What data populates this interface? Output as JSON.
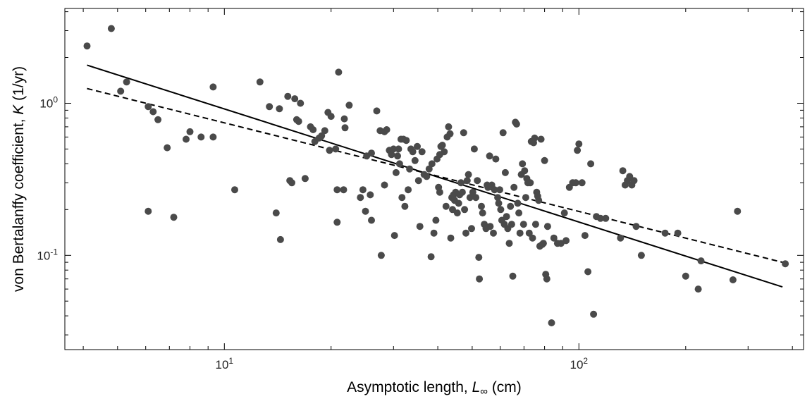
{
  "chart_data": {
    "type": "scatter",
    "title": "",
    "xlabel": {
      "prefix": "Asymptotic length, ",
      "symbol": "L",
      "subscript": "∞",
      "suffix": " (cm)"
    },
    "ylabel": {
      "prefix": "von Bertalanffy coefficient, ",
      "symbol": "K",
      "suffix": " (1/yr)"
    },
    "x_scale": "log",
    "y_scale": "log",
    "xlim": [
      3.55,
      430
    ],
    "ylim": [
      0.024,
      4.2
    ],
    "x_ticks": [
      {
        "value": 10,
        "base": "10",
        "exp": "1"
      },
      {
        "value": 100,
        "base": "10",
        "exp": "2"
      }
    ],
    "y_ticks": [
      {
        "value": 0.1,
        "base": "10",
        "exp": "-1"
      },
      {
        "value": 1,
        "base": "10",
        "exp": "0"
      }
    ],
    "grid": false,
    "marker_color": "#4a4a4a",
    "line_color": "#000000",
    "points": [
      [
        4.1,
        2.38
      ],
      [
        4.8,
        3.1
      ],
      [
        5.1,
        1.2
      ],
      [
        5.3,
        1.38
      ],
      [
        6.1,
        0.95
      ],
      [
        6.3,
        0.88
      ],
      [
        6.5,
        0.78
      ],
      [
        6.1,
        0.195
      ],
      [
        6.9,
        0.51
      ],
      [
        7.2,
        0.178
      ],
      [
        7.8,
        0.58
      ],
      [
        8.0,
        0.65
      ],
      [
        8.6,
        0.6
      ],
      [
        9.3,
        1.28
      ],
      [
        9.3,
        0.6
      ],
      [
        10.7,
        0.27
      ],
      [
        12.6,
        1.38
      ],
      [
        13.4,
        0.95
      ],
      [
        14.0,
        0.19
      ],
      [
        14.3,
        0.92
      ],
      [
        14.4,
        0.127
      ],
      [
        15.1,
        1.11
      ],
      [
        15.3,
        0.31
      ],
      [
        15.5,
        0.3
      ],
      [
        15.8,
        1.07
      ],
      [
        16.0,
        0.78
      ],
      [
        16.2,
        0.76
      ],
      [
        16.4,
        1.0
      ],
      [
        16.9,
        0.32
      ],
      [
        17.5,
        0.7
      ],
      [
        17.8,
        0.67
      ],
      [
        18.0,
        0.56
      ],
      [
        18.5,
        0.59
      ],
      [
        18.8,
        0.61
      ],
      [
        19.2,
        0.66
      ],
      [
        19.6,
        0.87
      ],
      [
        19.8,
        0.49
      ],
      [
        20.0,
        0.82
      ],
      [
        20.6,
        0.5
      ],
      [
        20.8,
        0.165
      ],
      [
        20.8,
        0.27
      ],
      [
        21.0,
        1.6
      ],
      [
        21.7,
        0.27
      ],
      [
        21.8,
        0.79
      ],
      [
        21.9,
        0.69
      ],
      [
        22.5,
        0.97
      ],
      [
        24.2,
        0.24
      ],
      [
        24.6,
        0.27
      ],
      [
        25.0,
        0.195
      ],
      [
        25.2,
        0.45
      ],
      [
        25.8,
        0.25
      ],
      [
        26.0,
        0.17
      ],
      [
        26.0,
        0.47
      ],
      [
        26.9,
        0.89
      ],
      [
        27.5,
        0.66
      ],
      [
        27.7,
        0.1
      ],
      [
        28.3,
        0.65
      ],
      [
        28.3,
        0.29
      ],
      [
        28.7,
        0.67
      ],
      [
        29.2,
        0.49
      ],
      [
        29.6,
        0.46
      ],
      [
        30.0,
        0.5
      ],
      [
        30.2,
        0.135
      ],
      [
        30.5,
        0.35
      ],
      [
        30.8,
        0.45
      ],
      [
        31.0,
        0.5
      ],
      [
        31.2,
        0.4
      ],
      [
        31.5,
        0.58
      ],
      [
        31.7,
        0.24
      ],
      [
        32.0,
        0.58
      ],
      [
        32.3,
        0.21
      ],
      [
        32.6,
        0.57
      ],
      [
        33.0,
        0.27
      ],
      [
        33.3,
        0.37
      ],
      [
        33.6,
        0.5
      ],
      [
        34.0,
        0.48
      ],
      [
        34.5,
        0.42
      ],
      [
        35.0,
        0.52
      ],
      [
        35.3,
        0.31
      ],
      [
        35.6,
        0.155
      ],
      [
        36.1,
        0.48
      ],
      [
        36.6,
        0.34
      ],
      [
        37.2,
        0.33
      ],
      [
        37.8,
        0.37
      ],
      [
        38.3,
        0.098
      ],
      [
        38.5,
        0.4
      ],
      [
        39.0,
        0.14
      ],
      [
        39.5,
        0.17
      ],
      [
        39.8,
        0.43
      ],
      [
        40.2,
        0.28
      ],
      [
        40.5,
        0.26
      ],
      [
        40.5,
        0.46
      ],
      [
        40.8,
        0.52
      ],
      [
        41.2,
        0.53
      ],
      [
        41.7,
        0.48
      ],
      [
        42.2,
        0.21
      ],
      [
        42.5,
        0.6
      ],
      [
        42.9,
        0.7
      ],
      [
        43.3,
        0.63
      ],
      [
        43.5,
        0.13
      ],
      [
        43.8,
        0.24
      ],
      [
        44.0,
        0.2
      ],
      [
        44.3,
        0.25
      ],
      [
        44.6,
        0.23
      ],
      [
        44.9,
        0.26
      ],
      [
        45.4,
        0.19
      ],
      [
        45.8,
        0.22
      ],
      [
        46.1,
        0.25
      ],
      [
        46.5,
        0.3
      ],
      [
        46.9,
        0.26
      ],
      [
        47.3,
        0.64
      ],
      [
        47.6,
        0.2
      ],
      [
        48.0,
        0.14
      ],
      [
        48.4,
        0.31
      ],
      [
        48.8,
        0.34
      ],
      [
        49.3,
        0.24
      ],
      [
        49.8,
        0.15
      ],
      [
        50.2,
        0.26
      ],
      [
        50.7,
        0.5
      ],
      [
        51.2,
        0.24
      ],
      [
        51.7,
        0.31
      ],
      [
        52.2,
        0.097
      ],
      [
        52.4,
        0.07
      ],
      [
        53.1,
        0.21
      ],
      [
        53.5,
        0.19
      ],
      [
        54.1,
        0.16
      ],
      [
        54.7,
        0.15
      ],
      [
        55.1,
        0.29
      ],
      [
        55.4,
        0.28
      ],
      [
        56.0,
        0.45
      ],
      [
        56.2,
        0.155
      ],
      [
        56.8,
        0.29
      ],
      [
        57.4,
        0.14
      ],
      [
        57.8,
        0.27
      ],
      [
        58.3,
        0.43
      ],
      [
        59.0,
        0.24
      ],
      [
        59.4,
        0.22
      ],
      [
        59.8,
        0.27
      ],
      [
        60.2,
        0.2
      ],
      [
        60.6,
        0.17
      ],
      [
        61.1,
        0.64
      ],
      [
        61.6,
        0.16
      ],
      [
        62.0,
        0.35
      ],
      [
        62.5,
        0.18
      ],
      [
        63.0,
        0.15
      ],
      [
        63.6,
        0.12
      ],
      [
        64.1,
        0.21
      ],
      [
        64.6,
        0.16
      ],
      [
        65.1,
        0.073
      ],
      [
        65.6,
        0.28
      ],
      [
        66.2,
        0.75
      ],
      [
        66.7,
        0.73
      ],
      [
        67.2,
        0.22
      ],
      [
        67.7,
        0.19
      ],
      [
        68.2,
        0.14
      ],
      [
        68.8,
        0.34
      ],
      [
        69.3,
        0.4
      ],
      [
        69.8,
        0.16
      ],
      [
        70.3,
        0.36
      ],
      [
        70.8,
        0.24
      ],
      [
        71.3,
        0.32
      ],
      [
        71.8,
        0.3
      ],
      [
        72.4,
        0.14
      ],
      [
        72.9,
        0.3
      ],
      [
        73.4,
        0.56
      ],
      [
        74.0,
        0.13
      ],
      [
        74.5,
        0.55
      ],
      [
        75.0,
        0.59
      ],
      [
        75.5,
        0.16
      ],
      [
        76.0,
        0.26
      ],
      [
        76.5,
        0.245
      ],
      [
        77.0,
        0.23
      ],
      [
        77.6,
        0.115
      ],
      [
        78.2,
        0.58
      ],
      [
        78.8,
        0.118
      ],
      [
        79.4,
        0.12
      ],
      [
        80.0,
        0.42
      ],
      [
        80.6,
        0.075
      ],
      [
        81.2,
        0.07
      ],
      [
        81.6,
        0.155
      ],
      [
        83.7,
        0.036
      ],
      [
        85.0,
        0.13
      ],
      [
        87.0,
        0.12
      ],
      [
        89.0,
        0.12
      ],
      [
        91.0,
        0.19
      ],
      [
        92.0,
        0.125
      ],
      [
        94.0,
        0.28
      ],
      [
        96.0,
        0.3
      ],
      [
        98.0,
        0.3
      ],
      [
        99.0,
        0.49
      ],
      [
        100.0,
        0.54
      ],
      [
        102.0,
        0.3
      ],
      [
        104.0,
        0.135
      ],
      [
        106.0,
        0.078
      ],
      [
        108.0,
        0.4
      ],
      [
        110.0,
        0.041
      ],
      [
        112.0,
        0.18
      ],
      [
        115.0,
        0.175
      ],
      [
        119.0,
        0.175
      ],
      [
        131.0,
        0.13
      ],
      [
        133.0,
        0.36
      ],
      [
        135.0,
        0.29
      ],
      [
        137.0,
        0.31
      ],
      [
        139.0,
        0.33
      ],
      [
        141.0,
        0.29
      ],
      [
        143.0,
        0.31
      ],
      [
        145.0,
        0.155
      ],
      [
        150.0,
        0.1
      ],
      [
        175.0,
        0.14
      ],
      [
        190.0,
        0.14
      ],
      [
        200.0,
        0.073
      ],
      [
        217.0,
        0.06
      ],
      [
        221.0,
        0.092
      ],
      [
        272.0,
        0.069
      ],
      [
        280.0,
        0.195
      ],
      [
        382.0,
        0.088
      ]
    ],
    "lines": [
      {
        "style": "solid",
        "x": [
          4.1,
          375
        ],
        "y": [
          1.78,
          0.062
        ]
      },
      {
        "style": "dashed",
        "x": [
          4.1,
          375
        ],
        "y": [
          1.25,
          0.09
        ]
      }
    ]
  }
}
